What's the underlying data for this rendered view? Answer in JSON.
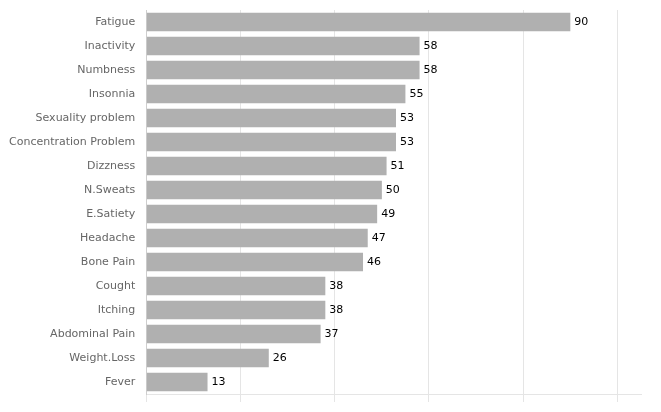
{
  "chart_data": {
    "type": "bar",
    "orientation": "horizontal",
    "categories": [
      "Fever",
      "Weight.Loss",
      "Abdominal Pain",
      "Itching",
      "Cought",
      "Bone Pain",
      "Headache",
      "E.Satiety",
      "N.Sweats",
      "Dizzness",
      "Concentration Problem",
      "Sexuality problem",
      "Insonnia",
      "Numbness",
      "Inactivity",
      "Fatigue"
    ],
    "values": [
      13,
      26,
      37,
      38,
      38,
      46,
      47,
      49,
      50,
      51,
      53,
      53,
      55,
      58,
      58,
      90
    ],
    "color": "#b0b0b0",
    "xlim": [
      0,
      105
    ],
    "xticks": [
      0,
      20,
      40,
      60,
      80,
      100
    ],
    "grid": true,
    "data_labels": true,
    "tick_labels": "y"
  }
}
